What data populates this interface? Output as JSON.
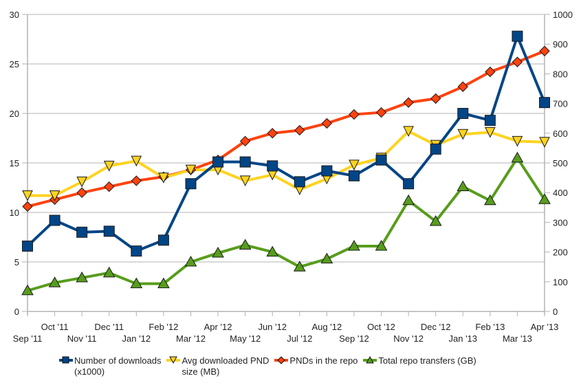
{
  "chart_data": {
    "type": "line",
    "title": "",
    "xlabel": "",
    "ylabel": "",
    "x_top_labels": [
      "Oct '11",
      "Dec '11",
      "Feb '12",
      "Apr '12",
      "Jun '12",
      "Aug '12",
      "Oct '12",
      "Dec '12",
      "Feb '13",
      "Apr '13"
    ],
    "x_bottom_labels": [
      "Sep '11",
      "Nov '11",
      "Jan '12",
      "Mar '12",
      "May '12",
      "Jul '12",
      "Sep '12",
      "Nov '12",
      "Jan '13",
      "Mar '13"
    ],
    "categories": [
      "Sep '11",
      "Oct '11",
      "Nov '11",
      "Dec '11",
      "Jan '12",
      "Feb '12",
      "Mar '12",
      "Apr '12",
      "May '12",
      "Jun '12",
      "Jul '12",
      "Aug '12",
      "Sep '12",
      "Oct '12",
      "Nov '12",
      "Dec '12",
      "Jan '13",
      "Feb '13",
      "Mar '13",
      "Apr '13"
    ],
    "ylim": [
      0,
      30
    ],
    "y2lim": [
      0,
      1000
    ],
    "yticks": [
      "0",
      "5",
      "10",
      "15",
      "20",
      "25",
      "30"
    ],
    "y2ticks": [
      "0",
      "100",
      "200",
      "300",
      "400",
      "500",
      "600",
      "700",
      "800",
      "900",
      "1000"
    ],
    "grid": true,
    "legend_position": "bottom",
    "series": [
      {
        "name": "Number of downloads (x1000)",
        "legend_line1": "Number of downloads",
        "legend_line2": "(x1000)",
        "axis": "left",
        "color": "#004586",
        "marker": "square",
        "values": [
          6.6,
          9.2,
          8.0,
          8.1,
          6.1,
          7.2,
          12.9,
          15.1,
          15.1,
          14.7,
          13.1,
          14.2,
          13.7,
          15.3,
          12.9,
          16.4,
          20.0,
          19.3,
          27.8,
          21.1
        ]
      },
      {
        "name": "Avg downloaded PND size (MB)",
        "legend_line1": "Avg downloaded PND",
        "legend_line2": "size (MB)",
        "axis": "left",
        "color": "#ffd320",
        "marker": "triangle-down",
        "values": [
          11.7,
          11.7,
          13.1,
          14.7,
          15.2,
          13.5,
          14.3,
          14.3,
          13.2,
          13.8,
          12.3,
          13.4,
          14.8,
          15.5,
          18.2,
          16.8,
          17.9,
          18.1,
          17.2,
          17.1
        ]
      },
      {
        "name": "PNDs in the repo",
        "legend_line1": "PNDs in the repo",
        "legend_line2": "",
        "axis": "left",
        "color": "#ff420e",
        "marker": "diamond",
        "values": [
          10.6,
          11.3,
          12.0,
          12.6,
          13.2,
          13.6,
          14.3,
          15.3,
          17.2,
          18.0,
          18.3,
          19.0,
          19.9,
          20.1,
          21.1,
          21.5,
          22.7,
          24.2,
          25.2,
          26.3
        ]
      },
      {
        "name": "Total repo transfers (GB)",
        "legend_line1": "Total repo transfers (GB)",
        "legend_line2": "",
        "axis": "left",
        "color": "#579d1c",
        "marker": "triangle-up",
        "values": [
          2.1,
          2.9,
          3.4,
          3.9,
          2.8,
          2.8,
          5.0,
          5.9,
          6.7,
          6.0,
          4.5,
          5.3,
          6.6,
          6.6,
          11.2,
          9.1,
          12.6,
          11.2,
          15.5,
          11.3
        ]
      }
    ]
  }
}
